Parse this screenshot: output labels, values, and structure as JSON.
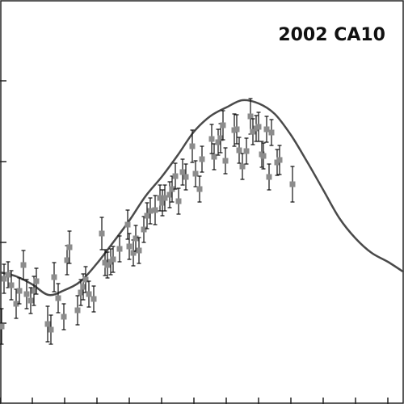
{
  "chart_data": {
    "type": "scatter",
    "title": "2002 CA10",
    "xlabel": "",
    "ylabel": "",
    "grid": false,
    "legend": "none",
    "xlim": [
      0,
      500
    ],
    "ylim": [
      0,
      500
    ],
    "x_ticks": [
      0,
      40,
      80,
      120,
      160,
      200,
      240,
      280,
      320,
      360,
      400,
      440,
      480
    ],
    "y_ticks": [
      100,
      200,
      300,
      400
    ],
    "colors": {
      "points": "#8c8c8c",
      "curve": "#4a4a4a",
      "axis": "#222222"
    },
    "model_curve": {
      "x": [
        0,
        20,
        40,
        60,
        80,
        100,
        120,
        140,
        160,
        180,
        200,
        220,
        240,
        260,
        280,
        300,
        320,
        340,
        360,
        380,
        400,
        420,
        440,
        460,
        480,
        500
      ],
      "y": [
        163,
        158,
        148,
        135,
        141,
        152,
        174,
        200,
        227,
        257,
        281,
        308,
        337,
        356,
        367,
        376,
        372,
        359,
        333,
        300,
        265,
        230,
        205,
        187,
        176,
        163
      ]
    },
    "series": [
      {
        "x": [
          2,
          5,
          10,
          14,
          20,
          24,
          29,
          33,
          38,
          42,
          45,
          59,
          63,
          67,
          72,
          79,
          83,
          86,
          96,
          100,
          103,
          106,
          110,
          116,
          126,
          130,
          133,
          137,
          140,
          148,
          158,
          160,
          165,
          168,
          172,
          178,
          182,
          186,
          192,
          198,
          201,
          204,
          210,
          213,
          217,
          221,
          226,
          230,
          238,
          242,
          247,
          250,
          262,
          265,
          270,
          273,
          276,
          279,
          290,
          293,
          296,
          300,
          305,
          310,
          313,
          317,
          320,
          324,
          326,
          330,
          333,
          336,
          343,
          346,
          362
        ],
        "y": [
          96,
          155,
          160,
          147,
          124,
          140,
          172,
          136,
          128,
          140,
          152,
          99,
          92,
          157,
          131,
          108,
          178,
          194,
          116,
          138,
          145,
          154,
          136,
          130,
          211,
          175,
          172,
          176,
          179,
          192,
          222,
          195,
          187,
          205,
          190,
          216,
          233,
          239,
          240,
          255,
          249,
          255,
          259,
          266,
          282,
          251,
          287,
          281,
          319,
          285,
          266,
          303,
          328,
          306,
          324,
          329,
          345,
          301,
          339,
          340,
          314,
          294,
          313,
          356,
          337,
          341,
          343,
          309,
          307,
          340,
          281,
          336,
          299,
          302,
          272
        ],
        "err": [
          22,
          18,
          16,
          18,
          18,
          16,
          18,
          18,
          16,
          18,
          16,
          22,
          18,
          18,
          18,
          16,
          18,
          20,
          18,
          16,
          16,
          16,
          16,
          16,
          20,
          16,
          16,
          16,
          16,
          16,
          18,
          16,
          16,
          16,
          16,
          16,
          16,
          16,
          18,
          16,
          16,
          16,
          16,
          16,
          16,
          16,
          16,
          16,
          20,
          16,
          16,
          16,
          18,
          16,
          16,
          18,
          18,
          16,
          20,
          18,
          16,
          16,
          16,
          22,
          16,
          16,
          18,
          16,
          16,
          16,
          16,
          16,
          16,
          18,
          22
        ]
      }
    ]
  }
}
